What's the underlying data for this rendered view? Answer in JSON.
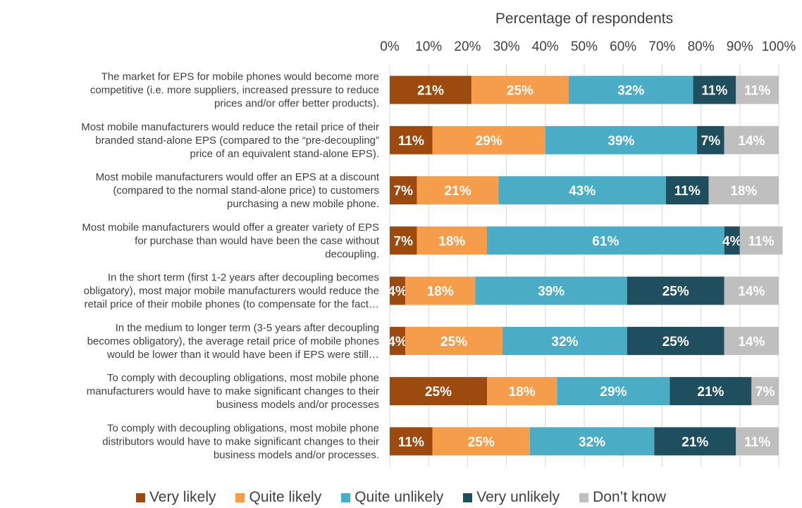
{
  "chart_data": {
    "type": "bar",
    "orientation": "horizontal",
    "stacked": "100%",
    "xlabel": "Percentage of respondents",
    "axis_position": "top",
    "xlim": [
      0,
      100
    ],
    "ticks": [
      "0%",
      "10%",
      "20%",
      "30%",
      "40%",
      "50%",
      "60%",
      "70%",
      "80%",
      "90%",
      "100%"
    ],
    "grid": true,
    "legend_position": "bottom",
    "categories": [
      [
        "The market for EPS for mobile phones would become more",
        "competitive (i.e. more suppliers, increased pressure to reduce",
        "prices and/or offer better products)."
      ],
      [
        "Most mobile manufacturers would reduce the retail price of their",
        "branded stand-alone EPS (compared to the “pre-decoupling”",
        "price of an equivalent stand-alone EPS)."
      ],
      [
        "Most  mobile manufacturers would offer an EPS at a discount",
        "(compared to the normal stand-alone price) to customers",
        "purchasing a new mobile phone."
      ],
      [
        "Most mobile manufacturers would offer a greater variety of EPS",
        "for purchase than would have been the case without",
        "decoupling."
      ],
      [
        "In the short term (first 1-2 years after decoupling becomes",
        "obligatory), most major mobile manufacturers would reduce the",
        "retail price of their mobile phones (to compensate for the fact…"
      ],
      [
        "In the medium to longer term (3-5 years after decoupling",
        "becomes obligatory), the average retail price of mobile phones",
        "would be lower than it would have been if EPS were still…"
      ],
      [
        "To comply with decoupling obligations, most mobile phone",
        "manufacturers would have to make significant changes to their",
        "business models and/or processes"
      ],
      [
        "To comply with decoupling obligations, most mobile phone",
        "distributors would have to make significant changes to their",
        "business models and/or processes."
      ]
    ],
    "series": [
      {
        "name": "Very likely",
        "color": "#9C4A0E",
        "values": [
          21,
          11,
          7,
          7,
          4,
          4,
          25,
          11
        ]
      },
      {
        "name": "Quite likely",
        "color": "#F59D4B",
        "values": [
          25,
          29,
          21,
          18,
          18,
          25,
          18,
          25
        ]
      },
      {
        "name": "Quite unlikely",
        "color": "#4BACC6",
        "values": [
          32,
          39,
          43,
          61,
          39,
          32,
          29,
          32
        ]
      },
      {
        "name": "Very unlikely",
        "color": "#1F4E5F",
        "values": [
          11,
          7,
          11,
          4,
          25,
          25,
          21,
          21
        ]
      },
      {
        "name": "Don’t know",
        "color": "#BFBFBF",
        "values": [
          11,
          14,
          18,
          11,
          14,
          14,
          7,
          11
        ]
      }
    ]
  }
}
